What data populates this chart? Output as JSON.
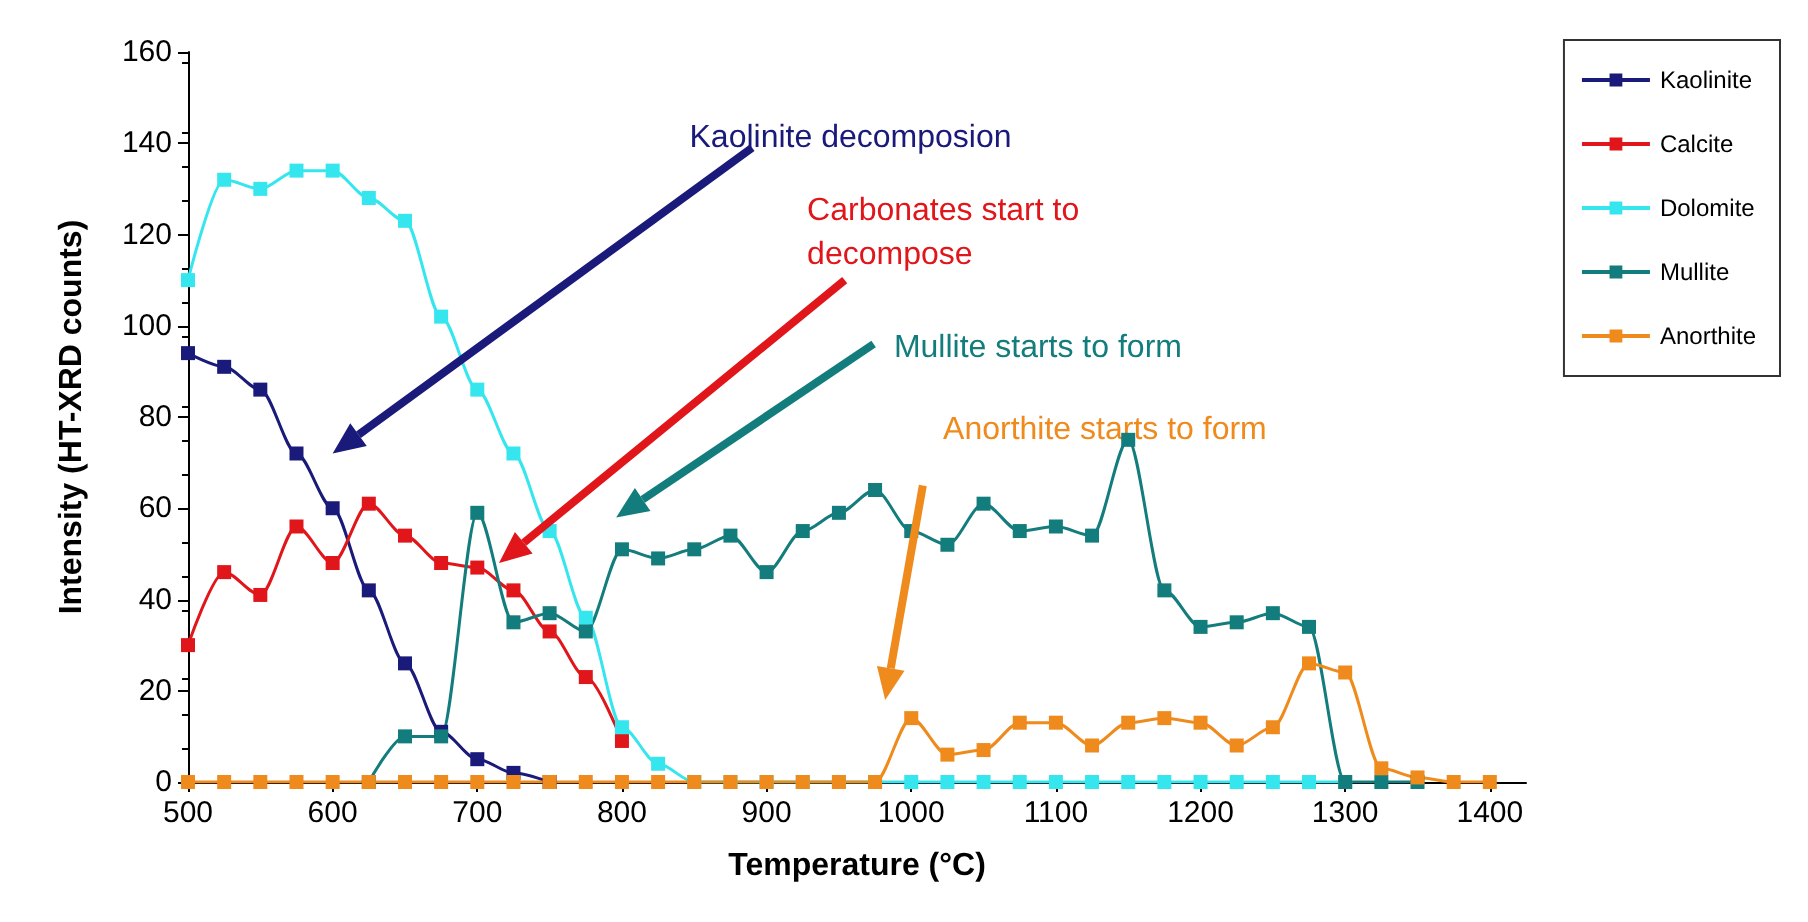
{
  "chart_data": {
    "type": "line",
    "xlabel": "Temperature (°C)",
    "ylabel": "Intensity (HT-XRD counts)",
    "x": [
      500,
      525,
      550,
      575,
      600,
      625,
      650,
      675,
      700,
      725,
      750,
      775,
      800,
      825,
      850,
      875,
      900,
      925,
      950,
      975,
      1000,
      1025,
      1050,
      1075,
      1100,
      1125,
      1150,
      1175,
      1200,
      1225,
      1250,
      1275,
      1300,
      1325,
      1350,
      1375,
      1400
    ],
    "series": [
      {
        "name": "Kaolinite",
        "color": "#1a1a7a",
        "values": [
          94,
          91,
          86,
          72,
          60,
          42,
          26,
          11,
          5,
          2,
          0,
          null,
          null,
          null,
          null,
          null,
          null,
          null,
          null,
          null,
          null,
          null,
          null,
          null,
          null,
          null,
          null,
          null,
          null,
          null,
          null,
          null,
          null,
          null,
          null,
          null,
          null
        ]
      },
      {
        "name": "Calcite",
        "color": "#e0161b",
        "values": [
          30,
          46,
          41,
          56,
          48,
          61,
          54,
          48,
          47,
          42,
          33,
          23,
          9,
          null,
          null,
          null,
          null,
          null,
          null,
          null,
          null,
          null,
          null,
          null,
          null,
          null,
          null,
          null,
          null,
          null,
          null,
          null,
          null,
          null,
          null,
          null,
          null
        ]
      },
      {
        "name": "Dolomite",
        "color": "#36e6ee",
        "values": [
          110,
          132,
          130,
          134,
          134,
          128,
          123,
          102,
          86,
          72,
          55,
          36,
          12,
          4,
          0,
          0,
          0,
          0,
          0,
          0,
          0,
          0,
          0,
          0,
          0,
          0,
          0,
          0,
          0,
          0,
          0,
          0,
          0,
          null,
          null,
          null,
          null
        ]
      },
      {
        "name": "Mullite",
        "color": "#137c7c",
        "values": [
          null,
          null,
          null,
          null,
          null,
          0,
          10,
          10,
          59,
          35,
          37,
          33,
          51,
          49,
          51,
          54,
          46,
          55,
          59,
          64,
          55,
          52,
          61,
          55,
          56,
          54,
          75,
          42,
          34,
          35,
          37,
          34,
          0,
          0,
          0,
          null,
          null
        ]
      },
      {
        "name": "Anorthite",
        "color": "#ef8a1c",
        "values": [
          0,
          0,
          0,
          0,
          0,
          0,
          0,
          0,
          0,
          0,
          0,
          0,
          0,
          0,
          0,
          0,
          0,
          0,
          0,
          0,
          14,
          6,
          7,
          13,
          13,
          8,
          13,
          14,
          13,
          8,
          12,
          26,
          24,
          3,
          1,
          0,
          0
        ]
      }
    ],
    "annotations": [
      "Kaolinite decomposion",
      "Carbonates start to\ndecompose",
      "Mullite starts to form",
      "Anorthite starts to form"
    ],
    "xlim": [
      500,
      1425
    ],
    "xticks": [
      500,
      600,
      700,
      800,
      900,
      1000,
      1100,
      1200,
      1300,
      1400
    ],
    "ylim": [
      0,
      160
    ],
    "yticks": [
      0,
      20,
      40,
      60,
      80,
      100,
      120,
      140,
      160
    ],
    "marker": "square",
    "legend": "right",
    "grid": false
  }
}
